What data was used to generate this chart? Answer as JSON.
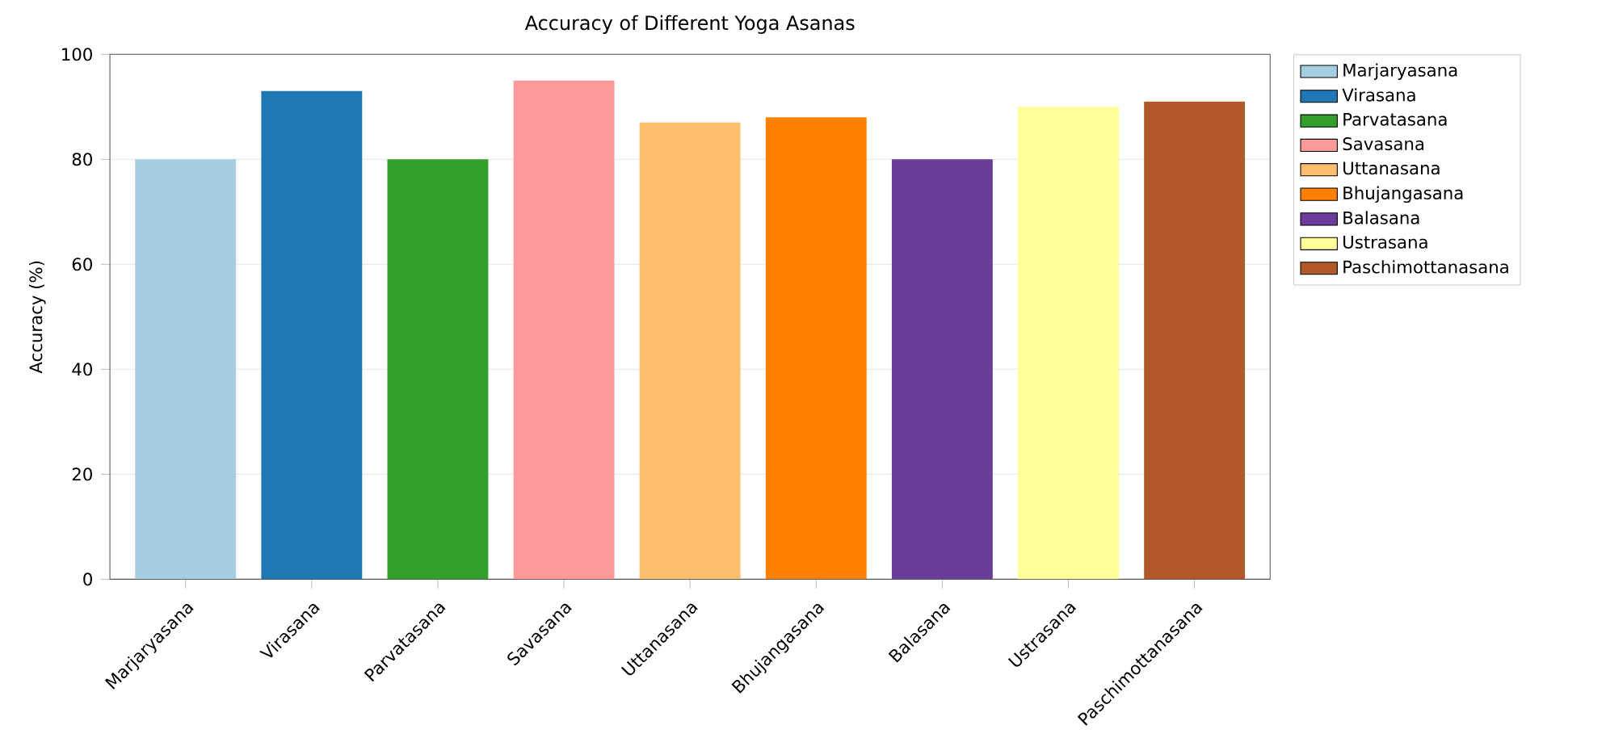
{
  "chart_data": {
    "type": "bar",
    "title": "Accuracy of Different Yoga Asanas",
    "ylabel": "Accuracy (%)",
    "categories": [
      "Marjaryasana",
      "Virasana",
      "Parvatasana",
      "Savasana",
      "Uttanasana",
      "Bhujangasana",
      "Balasana",
      "Ustrasana",
      "Paschimottanasana"
    ],
    "series": [
      {
        "name": "Marjaryasana",
        "color": "#a6cee3",
        "values": [
          80,
          null,
          null,
          null,
          null,
          null,
          null,
          null,
          null
        ]
      },
      {
        "name": "Virasana",
        "color": "#1f78b4",
        "values": [
          null,
          93,
          null,
          null,
          null,
          null,
          null,
          null,
          null
        ]
      },
      {
        "name": "Parvatasana",
        "color": "#33a02c",
        "values": [
          null,
          null,
          80,
          null,
          null,
          null,
          null,
          null,
          null
        ]
      },
      {
        "name": "Savasana",
        "color": "#fb9a99",
        "values": [
          null,
          null,
          null,
          95,
          null,
          null,
          null,
          null,
          null
        ]
      },
      {
        "name": "Uttanasana",
        "color": "#fdbf6f",
        "values": [
          null,
          null,
          null,
          null,
          87,
          null,
          null,
          null,
          null
        ]
      },
      {
        "name": "Bhujangasana",
        "color": "#ff7f00",
        "values": [
          null,
          null,
          null,
          null,
          null,
          88,
          null,
          null,
          null
        ]
      },
      {
        "name": "Balasana",
        "color": "#6a3d9a",
        "values": [
          null,
          null,
          null,
          null,
          null,
          null,
          80,
          null,
          null
        ]
      },
      {
        "name": "Ustrasana",
        "color": "#ffff99",
        "values": [
          null,
          null,
          null,
          null,
          null,
          null,
          null,
          90,
          null
        ]
      },
      {
        "name": "Paschimottanasana",
        "color": "#b15928",
        "values": [
          null,
          null,
          null,
          null,
          null,
          null,
          null,
          null,
          91
        ]
      }
    ],
    "ylim": [
      0,
      100
    ],
    "yticks": [
      0,
      20,
      40,
      60,
      80,
      100
    ],
    "grid": "y",
    "legend": "top right"
  }
}
